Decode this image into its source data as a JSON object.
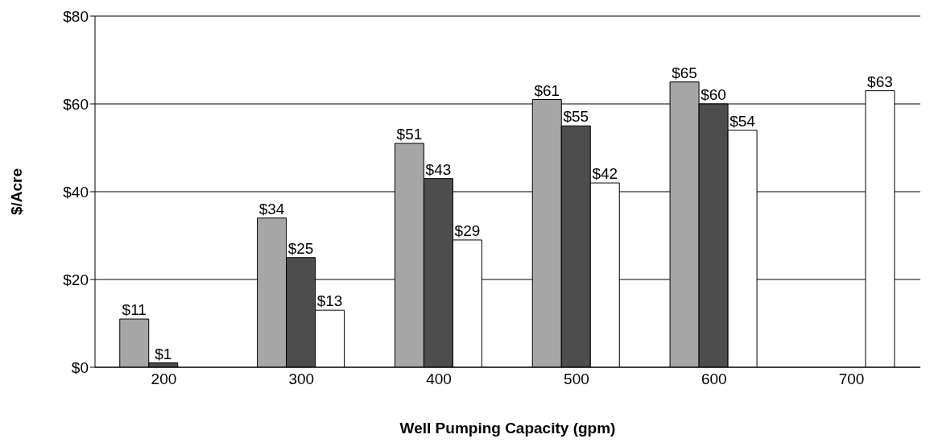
{
  "chart_data": {
    "type": "bar",
    "xlabel": "Well Pumping Capacity (gpm)",
    "ylabel": "$/Acre",
    "categories": [
      "200",
      "300",
      "400",
      "500",
      "600",
      "700"
    ],
    "series": [
      {
        "color": "#a6a6a6",
        "values": [
          11,
          34,
          51,
          61,
          65,
          null
        ],
        "value_labels": [
          "$11",
          "$34",
          "$51",
          "$61",
          "$65",
          null
        ]
      },
      {
        "color": "#4d4d4d",
        "values": [
          1,
          25,
          43,
          55,
          60,
          null
        ],
        "value_labels": [
          "$1",
          "$25",
          "$43",
          "$55",
          "$60",
          null
        ]
      },
      {
        "color": "#ffffff",
        "values": [
          null,
          13,
          29,
          42,
          54,
          63
        ],
        "value_labels": [
          null,
          "$13",
          "$29",
          "$42",
          "$54",
          "$63"
        ]
      }
    ],
    "ylim": [
      0,
      80
    ],
    "yticks": [
      {
        "value": 0,
        "label": "$0"
      },
      {
        "value": 20,
        "label": "$20"
      },
      {
        "value": 40,
        "label": "$40"
      },
      {
        "value": 60,
        "label": "$60"
      },
      {
        "value": 80,
        "label": "$80"
      }
    ],
    "grid": "y"
  }
}
